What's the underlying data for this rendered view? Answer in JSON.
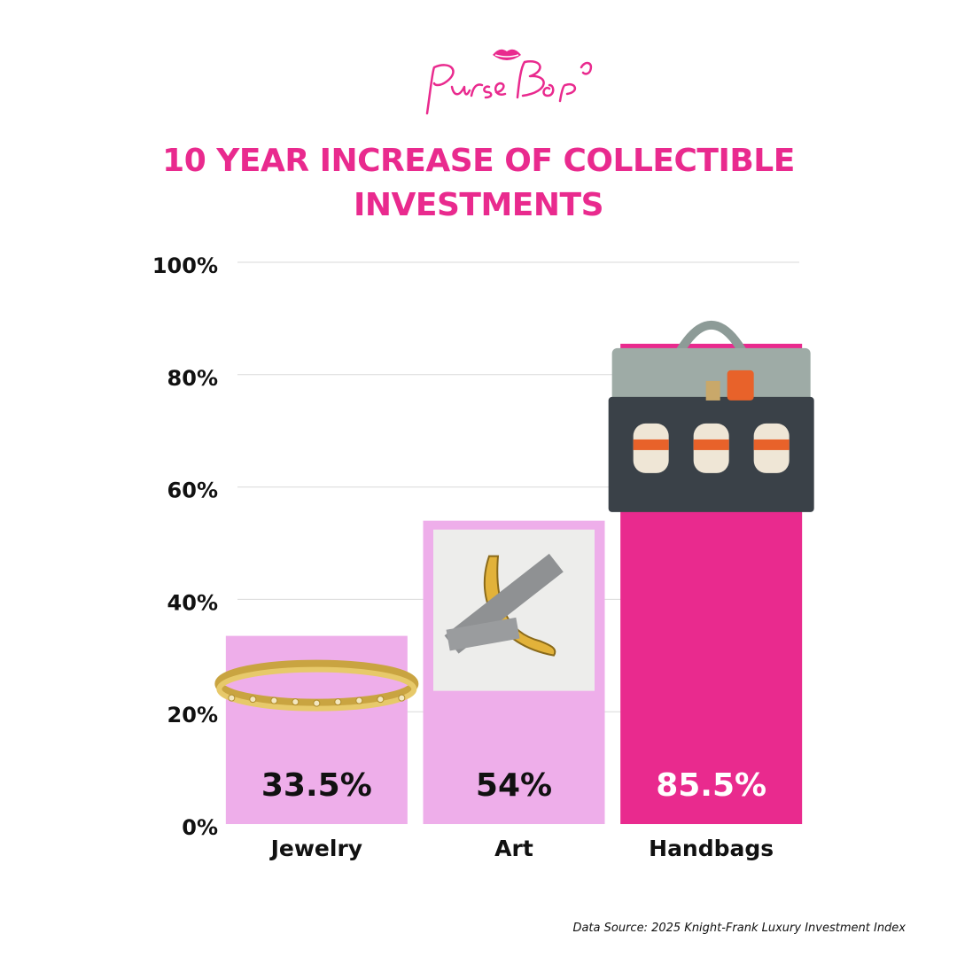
{
  "logo": {
    "text": "PurseBop"
  },
  "title_lines": [
    "10 YEAR INCREASE OF COLLECTIBLE",
    "INVESTMENTS"
  ],
  "source": "Data Source: 2025 Knight-Frank Luxury Investment Index",
  "colors": {
    "accent": "#e92a8e",
    "light_bar": "#eeaeea",
    "grid": "#d9d9d9",
    "text": "#111111"
  },
  "chart_data": {
    "type": "bar",
    "title": "10 YEAR INCREASE OF COLLECTIBLE INVESTMENTS",
    "categories": [
      "Jewelry",
      "Art",
      "Handbags"
    ],
    "values": [
      33.5,
      54,
      85.5
    ],
    "value_labels": [
      "33.5%",
      "54%",
      "85.5%"
    ],
    "bar_colors": [
      "#eeaeea",
      "#eeaeea",
      "#e92a8e"
    ],
    "bar_images": [
      "bracelet-icon",
      "banana-art-icon",
      "handbag-icon"
    ],
    "ylim": [
      0,
      100
    ],
    "yticks": [
      0,
      20,
      40,
      60,
      80,
      100
    ],
    "ytick_labels": [
      "0%",
      "20%",
      "40%",
      "60%",
      "80%",
      "100%"
    ],
    "xlabel": "",
    "ylabel": "",
    "grid": true,
    "legend": "none"
  }
}
